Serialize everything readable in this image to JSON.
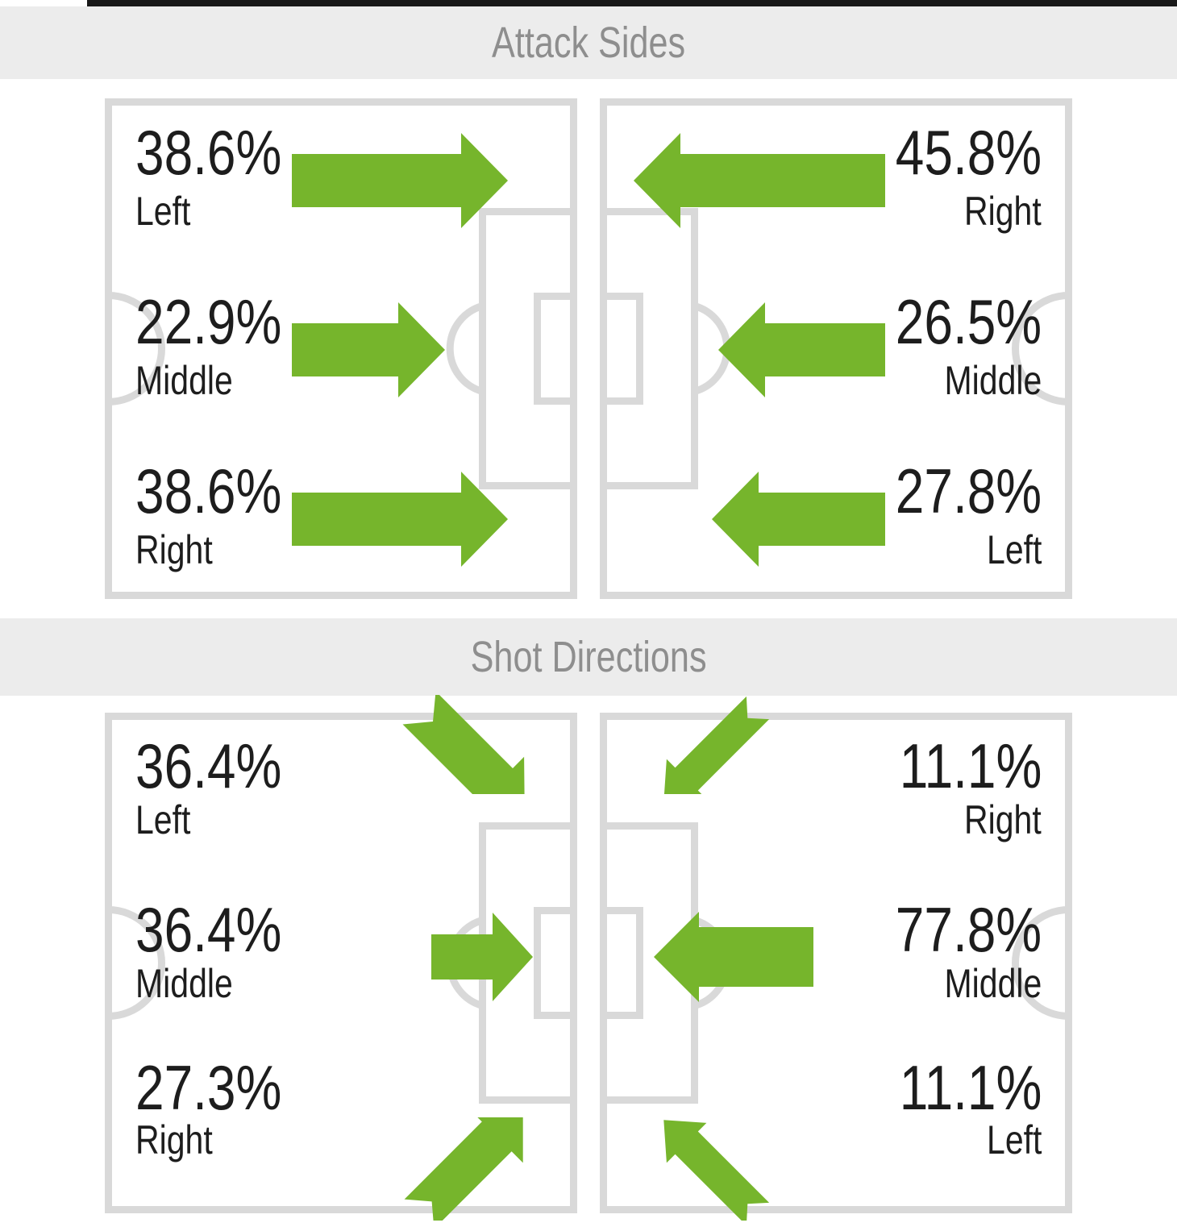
{
  "colors": {
    "arrow_green": "#76b52c",
    "pitch_line": "#d9d9d9",
    "header_bg": "#ececec",
    "header_text": "#8e8e8e",
    "text": "#1d1d1d",
    "top_bar": "#191919"
  },
  "sections": [
    {
      "id": "attack-sides",
      "title": "Attack Sides",
      "pitches": [
        {
          "side": "left",
          "rows": [
            {
              "text": "38.6%",
              "pct": 38.6,
              "label": "Left",
              "dir": "right"
            },
            {
              "text": "22.9%",
              "pct": 22.9,
              "label": "Middle",
              "dir": "right"
            },
            {
              "text": "38.6%",
              "pct": 38.6,
              "label": "Right",
              "dir": "right"
            }
          ]
        },
        {
          "side": "right",
          "rows": [
            {
              "text": "45.8%",
              "pct": 45.8,
              "label": "Right",
              "dir": "left"
            },
            {
              "text": "26.5%",
              "pct": 26.5,
              "label": "Middle",
              "dir": "left"
            },
            {
              "text": "27.8%",
              "pct": 27.8,
              "label": "Left",
              "dir": "left"
            }
          ]
        }
      ]
    },
    {
      "id": "shot-directions",
      "title": "Shot Directions",
      "pitches": [
        {
          "side": "left",
          "rows": [
            {
              "text": "36.4%",
              "pct": 36.4,
              "label": "Left",
              "dir": "down-right"
            },
            {
              "text": "36.4%",
              "pct": 36.4,
              "label": "Middle",
              "dir": "right"
            },
            {
              "text": "27.3%",
              "pct": 27.3,
              "label": "Right",
              "dir": "up-right"
            }
          ]
        },
        {
          "side": "right",
          "rows": [
            {
              "text": "11.1%",
              "pct": 11.1,
              "label": "Right",
              "dir": "down-left"
            },
            {
              "text": "77.8%",
              "pct": 77.8,
              "label": "Middle",
              "dir": "left"
            },
            {
              "text": "11.1%",
              "pct": 11.1,
              "label": "Left",
              "dir": "up-left"
            }
          ]
        }
      ]
    }
  ],
  "chart_data": [
    {
      "type": "bar",
      "title": "Attack Sides",
      "unit": "%",
      "note": "arrow length proportional to value; left pitch attacks rightward, right pitch attacks leftward",
      "series": [
        {
          "name": "left-pitch",
          "categories": [
            "Left",
            "Middle",
            "Right"
          ],
          "values": [
            38.6,
            22.9,
            38.6
          ]
        },
        {
          "name": "right-pitch",
          "categories": [
            "Right",
            "Middle",
            "Left"
          ],
          "values": [
            45.8,
            26.5,
            27.8
          ]
        }
      ]
    },
    {
      "type": "bar",
      "title": "Shot Directions",
      "unit": "%",
      "note": "arrow size proportional to value; arrows point toward the goal",
      "series": [
        {
          "name": "left-pitch",
          "categories": [
            "Left",
            "Middle",
            "Right"
          ],
          "values": [
            36.4,
            36.4,
            27.3
          ]
        },
        {
          "name": "right-pitch",
          "categories": [
            "Right",
            "Middle",
            "Left"
          ],
          "values": [
            11.1,
            77.8,
            11.1
          ]
        }
      ]
    }
  ]
}
